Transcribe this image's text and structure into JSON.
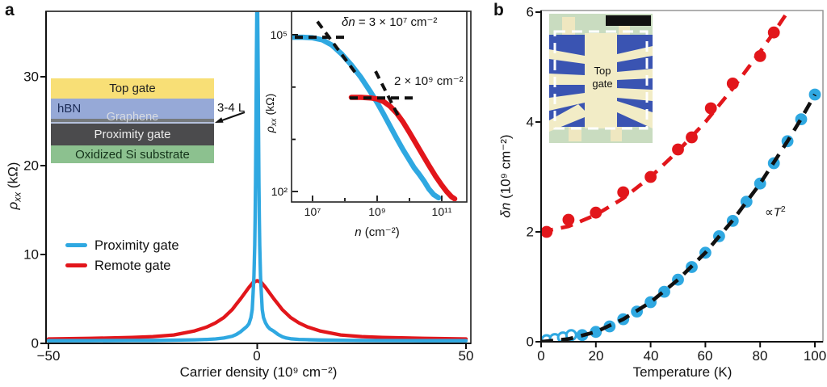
{
  "panels": {
    "a": {
      "label": "a",
      "axis": {
        "xlabel": "Carrier density (10⁹ cm⁻²)",
        "ylabel_sym": "ρ",
        "ylabel_sub": "xx",
        "ylabel_unit": " (kΩ)",
        "x_ticks": [
          "−50",
          "0",
          "50"
        ],
        "y_ticks": [
          "0",
          "10",
          "20",
          "30"
        ]
      },
      "legend": [
        {
          "label": "Proximity gate",
          "color": "#2FA8E1"
        },
        {
          "label": "Remote gate",
          "color": "#E2161B"
        }
      ],
      "schematic": {
        "layers": [
          {
            "label": "Top gate",
            "color": "#F8DF76"
          },
          {
            "label": "hBN",
            "color": "#96A9D7"
          },
          {
            "label": "Graphene",
            "color": "#75797C"
          },
          {
            "label": "Proximity gate",
            "color": "#4B4B4D"
          },
          {
            "label": "Oxidized Si substrate",
            "color": "#8CC18F"
          }
        ],
        "note": "3-4 L"
      },
      "inset": {
        "x_ticks": [
          "10⁷",
          "10⁹",
          "10¹¹"
        ],
        "y_ticks": [
          "10⁵",
          "10²"
        ],
        "xlabel_it": "n",
        "xlabel_rest": " (cm⁻²)",
        "ylabel_sym": "ρ",
        "ylabel_sub": "xx",
        "ylabel_unit": " (kΩ)",
        "ann_dn_it": "δn",
        "ann_dn_rest": " = 3 × 10⁷ cm⁻²",
        "ann_2e9": "2 × 10⁹ cm⁻²"
      }
    },
    "b": {
      "label": "b",
      "axis": {
        "xlabel": "Temperature (K)",
        "ylabel_it": "δn",
        "ylabel_unit": " (10⁹ cm⁻²)",
        "x_ticks": [
          "0",
          "20",
          "40",
          "60",
          "80",
          "100"
        ],
        "y_ticks": [
          "0",
          "2",
          "4",
          "6"
        ]
      },
      "annotation_prefix": "∝",
      "annotation_it": "T",
      "annotation_exp": "2",
      "photo_label": "Top gate"
    }
  },
  "chart_data": [
    {
      "id": "panel-a-main",
      "type": "line",
      "title": "",
      "xlabel": "Carrier density (10⁹ cm⁻²)",
      "ylabel": "ρxx (kΩ)",
      "xlim": [
        -50,
        50
      ],
      "ylim": [
        0,
        37.4
      ],
      "legend_position": "middle-left",
      "series": [
        {
          "name": "Proximity gate",
          "color": "#2FA8E1",
          "points": [
            [
              -50,
              0.3
            ],
            [
              -40,
              0.31
            ],
            [
              -30,
              0.33
            ],
            [
              -25,
              0.34
            ],
            [
              -20,
              0.36
            ],
            [
              -15,
              0.4
            ],
            [
              -12,
              0.45
            ],
            [
              -10,
              0.5
            ],
            [
              -8,
              0.6
            ],
            [
              -6,
              0.8
            ],
            [
              -5,
              1.0
            ],
            [
              -4,
              1.3
            ],
            [
              -3.5,
              1.5
            ],
            [
              -3,
              1.7
            ],
            [
              -2.5,
              1.9
            ],
            [
              -2,
              2.2
            ],
            [
              -1.5,
              2.9
            ],
            [
              -1.2,
              3.8
            ],
            [
              -1,
              5.5
            ],
            [
              -0.8,
              7.5
            ],
            [
              -0.6,
              11
            ],
            [
              -0.5,
              14
            ],
            [
              -0.4,
              18
            ],
            [
              -0.3,
              24
            ],
            [
              -0.2,
              32
            ],
            [
              -0.1,
              37.5
            ],
            [
              0,
              39.5
            ],
            [
              0.1,
              37.5
            ],
            [
              0.2,
              32
            ],
            [
              0.3,
              24
            ],
            [
              0.4,
              18
            ],
            [
              0.5,
              14
            ],
            [
              0.6,
              11
            ],
            [
              0.8,
              7.5
            ],
            [
              1,
              5.5
            ],
            [
              1.2,
              3.8
            ],
            [
              1.5,
              2.9
            ],
            [
              2,
              2.3
            ],
            [
              2.5,
              1.9
            ],
            [
              3,
              1.65
            ],
            [
              3.5,
              1.5
            ],
            [
              4,
              1.35
            ],
            [
              5,
              1.0
            ],
            [
              6,
              0.75
            ],
            [
              7,
              0.6
            ],
            [
              8,
              0.52
            ],
            [
              10,
              0.45
            ],
            [
              12,
              0.42
            ],
            [
              15,
              0.38
            ],
            [
              20,
              0.35
            ],
            [
              25,
              0.33
            ],
            [
              30,
              0.32
            ],
            [
              40,
              0.3
            ],
            [
              50,
              0.3
            ]
          ]
        },
        {
          "name": "Remote gate",
          "color": "#E2161B",
          "points": [
            [
              -50,
              0.5
            ],
            [
              -40,
              0.56
            ],
            [
              -30,
              0.66
            ],
            [
              -25,
              0.76
            ],
            [
              -20,
              0.95
            ],
            [
              -15,
              1.4
            ],
            [
              -12,
              1.85
            ],
            [
              -10,
              2.3
            ],
            [
              -8,
              2.9
            ],
            [
              -6,
              3.8
            ],
            [
              -5,
              4.4
            ],
            [
              -4,
              5.0
            ],
            [
              -3,
              5.65
            ],
            [
              -2,
              6.3
            ],
            [
              -1,
              6.85
            ],
            [
              0,
              7.05
            ],
            [
              1,
              6.85
            ],
            [
              2,
              6.3
            ],
            [
              3,
              5.65
            ],
            [
              4,
              5.0
            ],
            [
              5,
              4.4
            ],
            [
              6,
              3.8
            ],
            [
              8,
              2.9
            ],
            [
              10,
              2.3
            ],
            [
              12,
              1.85
            ],
            [
              15,
              1.4
            ],
            [
              20,
              0.95
            ],
            [
              25,
              0.76
            ],
            [
              30,
              0.66
            ],
            [
              40,
              0.56
            ],
            [
              50,
              0.5
            ]
          ]
        }
      ]
    },
    {
      "id": "panel-a-inset",
      "type": "line",
      "log_x": true,
      "log_y": true,
      "xlabel": "n (cm⁻²)",
      "ylabel": "ρxx (kΩ)",
      "x_ticks_log": [
        7,
        9,
        11
      ],
      "y_ticks_log": [
        5,
        2
      ],
      "xlim_log": [
        6.35,
        11.78
      ],
      "ylim_log": [
        1.8,
        5.45
      ],
      "series": [
        {
          "name": "Proximity gate",
          "color": "#2FA8E1",
          "points_log10": [
            [
              6.4,
              4.95
            ],
            [
              6.7,
              4.95
            ],
            [
              7.0,
              4.94
            ],
            [
              7.3,
              4.9
            ],
            [
              7.6,
              4.8
            ],
            [
              7.9,
              4.63
            ],
            [
              8.2,
              4.42
            ],
            [
              8.5,
              4.18
            ],
            [
              8.8,
              3.9
            ],
            [
              9.0,
              3.7
            ],
            [
              9.2,
              3.48
            ],
            [
              9.4,
              3.25
            ],
            [
              9.6,
              3.02
            ],
            [
              9.8,
              2.8
            ],
            [
              10.0,
              2.6
            ],
            [
              10.15,
              2.45
            ],
            [
              10.3,
              2.33
            ],
            [
              10.45,
              2.2
            ],
            [
              10.6,
              2.05
            ],
            [
              10.75,
              1.94
            ],
            [
              10.9,
              1.88
            ]
          ]
        },
        {
          "name": "Remote gate",
          "color": "#E2161B",
          "points_log10": [
            [
              8.2,
              3.8
            ],
            [
              8.5,
              3.8
            ],
            [
              8.8,
              3.79
            ],
            [
              9.0,
              3.77
            ],
            [
              9.2,
              3.72
            ],
            [
              9.4,
              3.63
            ],
            [
              9.6,
              3.5
            ],
            [
              9.8,
              3.33
            ],
            [
              10.0,
              3.13
            ],
            [
              10.2,
              2.92
            ],
            [
              10.4,
              2.71
            ],
            [
              10.6,
              2.5
            ],
            [
              10.8,
              2.3
            ],
            [
              11.0,
              2.12
            ],
            [
              11.15,
              2.0
            ],
            [
              11.3,
              1.9
            ],
            [
              11.4,
              1.86
            ]
          ]
        }
      ],
      "guide_lines": [
        {
          "name": "dn-level-proximity",
          "points_log10": [
            [
              6.45,
              4.95
            ],
            [
              8.1,
              4.95
            ]
          ]
        },
        {
          "name": "dn-slope-proximity",
          "points_log10": [
            [
              7.15,
              5.25
            ],
            [
              8.35,
              4.25
            ]
          ]
        },
        {
          "name": "dn-level-remote",
          "points_log10": [
            [
              8.15,
              3.79
            ],
            [
              10.15,
              3.79
            ]
          ]
        },
        {
          "name": "dn-slope-remote",
          "points_log10": [
            [
              8.95,
              4.3
            ],
            [
              9.65,
              3.45
            ]
          ]
        }
      ],
      "annotations": [
        "δn = 3 × 10⁷ cm⁻²",
        "2 × 10⁹ cm⁻²"
      ]
    },
    {
      "id": "panel-b",
      "type": "scatter",
      "xlabel": "Temperature (K)",
      "ylabel": "δn (10⁹ cm⁻²)",
      "xlim": [
        0,
        103
      ],
      "ylim": [
        0,
        6
      ],
      "annotation": "∝T²",
      "series": [
        {
          "name": "Proximity gate (low T, open)",
          "marker": "open-circle",
          "color": "#2FA8E1",
          "points": [
            [
              2,
              0.03
            ],
            [
              5,
              0.05
            ],
            [
              8,
              0.08
            ],
            [
              11,
              0.12
            ]
          ]
        },
        {
          "name": "Proximity gate",
          "marker": "circle",
          "color": "#2FA8E1",
          "points": [
            [
              15,
              0.12
            ],
            [
              20,
              0.18
            ],
            [
              25,
              0.28
            ],
            [
              30,
              0.41
            ],
            [
              35,
              0.55
            ],
            [
              40,
              0.72
            ],
            [
              45,
              0.91
            ],
            [
              50,
              1.13
            ],
            [
              55,
              1.36
            ],
            [
              60,
              1.62
            ],
            [
              65,
              1.92
            ],
            [
              70,
              2.2
            ],
            [
              75,
              2.55
            ],
            [
              80,
              2.88
            ],
            [
              85,
              3.25
            ],
            [
              90,
              3.65
            ],
            [
              95,
              4.05
            ],
            [
              100,
              4.5
            ]
          ]
        },
        {
          "name": "Remote gate",
          "marker": "circle",
          "color": "#E2161B",
          "points": [
            [
              2,
              2.0
            ],
            [
              10,
              2.22
            ],
            [
              20,
              2.35
            ],
            [
              30,
              2.72
            ],
            [
              40,
              3.0
            ],
            [
              50,
              3.5
            ],
            [
              55,
              3.72
            ],
            [
              62,
              4.25
            ],
            [
              70,
              4.7
            ],
            [
              80,
              5.2
            ],
            [
              85,
              5.63
            ]
          ]
        }
      ],
      "fit_lines": [
        {
          "name": "T-squared fit",
          "color": "#111111",
          "dashed": true,
          "points": [
            [
              0,
              0
            ],
            [
              10,
              0.05
            ],
            [
              20,
              0.18
            ],
            [
              30,
              0.41
            ],
            [
              40,
              0.72
            ],
            [
              50,
              1.13
            ],
            [
              60,
              1.62
            ],
            [
              70,
              2.21
            ],
            [
              80,
              2.88
            ],
            [
              90,
              3.65
            ],
            [
              95,
              4.06
            ],
            [
              100,
              4.5
            ]
          ]
        },
        {
          "name": "Remote gate guide",
          "color": "#E2161B",
          "dashed": true,
          "points": [
            [
              0,
              2.0
            ],
            [
              10,
              2.1
            ],
            [
              20,
              2.31
            ],
            [
              30,
              2.61
            ],
            [
              40,
              3.0
            ],
            [
              50,
              3.47
            ],
            [
              60,
              4.0
            ],
            [
              70,
              4.61
            ],
            [
              80,
              5.28
            ],
            [
              85,
              5.63
            ],
            [
              90,
              6.0
            ],
            [
              93,
              6.22
            ]
          ]
        }
      ]
    }
  ]
}
